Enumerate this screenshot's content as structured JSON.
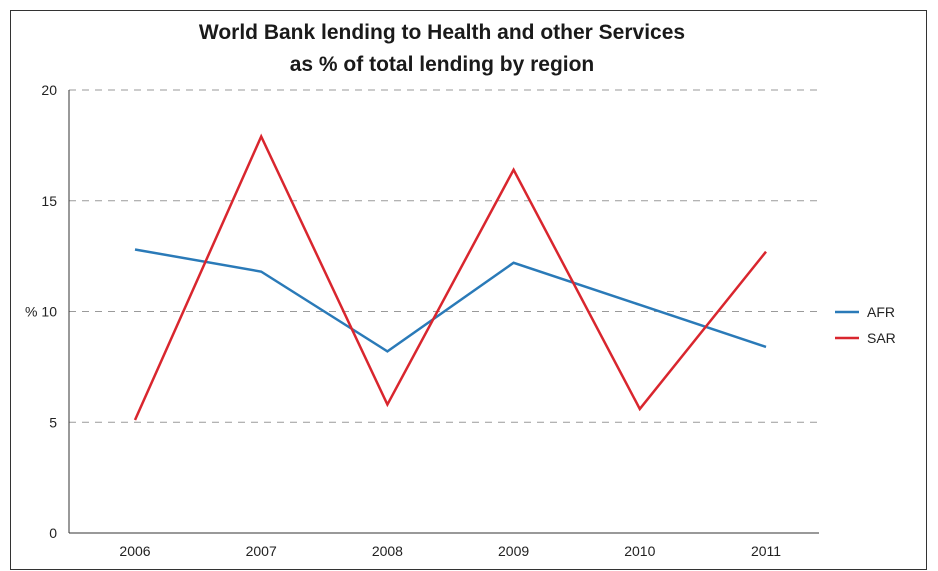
{
  "chart_data": {
    "type": "line",
    "title_lines": [
      "World Bank lending to Health and other Services",
      "as % of total lending by region"
    ],
    "xlabel": "",
    "ylabel": "%",
    "categories": [
      "2006",
      "2007",
      "2008",
      "2009",
      "2010",
      "2011"
    ],
    "ylim": [
      0,
      20
    ],
    "yticks": [
      "0",
      "5",
      "10",
      "15",
      "20"
    ],
    "grid": true,
    "legend_position": "right",
    "series": [
      {
        "name": "AFR",
        "color": "#2a7ab8",
        "values": [
          12.8,
          11.8,
          8.2,
          12.2,
          10.3,
          8.4
        ]
      },
      {
        "name": "SAR",
        "color": "#d9262e",
        "values": [
          5.1,
          17.9,
          5.8,
          16.4,
          5.6,
          12.7
        ]
      }
    ]
  }
}
